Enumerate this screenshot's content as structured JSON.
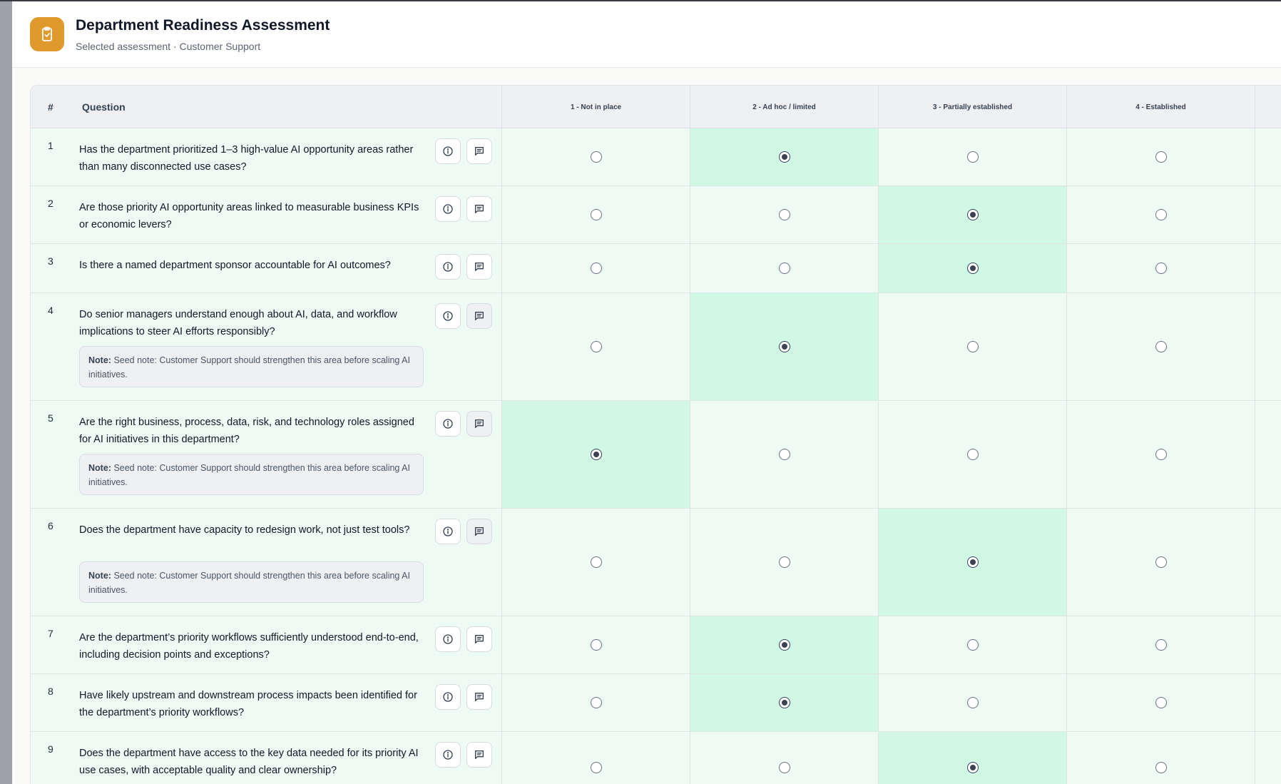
{
  "header": {
    "title": "Department Readiness Assessment",
    "subtitle": "Selected assessment · Customer Support"
  },
  "table": {
    "col_number": "#",
    "col_question": "Question",
    "levels": [
      "1 - Not in place",
      "2 - Ad hoc / limited",
      "3 - Partially established",
      "4 - Established"
    ],
    "note_prefix": "Note:",
    "rows": [
      {
        "number": "1",
        "question": "Has the department prioritized 1–3 high-value AI opportunity areas rather than many disconnected use cases?",
        "selected_level": 2,
        "note": ""
      },
      {
        "number": "2",
        "question": "Are those priority AI opportunity areas linked to measurable business KPIs or economic levers?",
        "selected_level": 3,
        "note": ""
      },
      {
        "number": "3",
        "question": "Is there a named department sponsor accountable for AI outcomes?",
        "selected_level": 3,
        "note": ""
      },
      {
        "number": "4",
        "question": "Do senior managers understand enough about AI, data, and workflow implications to steer AI efforts responsibly?",
        "selected_level": 2,
        "note": "Seed note: Customer Support should strengthen this area before scaling AI initiatives."
      },
      {
        "number": "5",
        "question": "Are the right business, process, data, risk, and technology roles assigned for AI initiatives in this department?",
        "selected_level": 1,
        "note": "Seed note: Customer Support should strengthen this area before scaling AI initiatives."
      },
      {
        "number": "6",
        "question": "Does the department have capacity to redesign work, not just test tools?",
        "selected_level": 3,
        "note": "Seed note: Customer Support should strengthen this area before scaling AI initiatives."
      },
      {
        "number": "7",
        "question": "Are the department’s priority workflows sufficiently understood end-to-end, including decision points and exceptions?",
        "selected_level": 2,
        "note": ""
      },
      {
        "number": "8",
        "question": "Have likely upstream and downstream process impacts been identified for the department’s priority workflows?",
        "selected_level": 2,
        "note": ""
      },
      {
        "number": "9",
        "question": "Does the department have access to the key data needed for its priority AI use cases, with acceptable quality and clear ownership?",
        "selected_level": 3,
        "note": ""
      }
    ]
  },
  "icons": {
    "app": "clipboard-check-icon",
    "info": "info-icon",
    "note": "message-square-icon"
  },
  "colors": {
    "accent": "#e09a2b",
    "selected_cell": "#d1f7e5",
    "row_background": "#edfbf4"
  }
}
